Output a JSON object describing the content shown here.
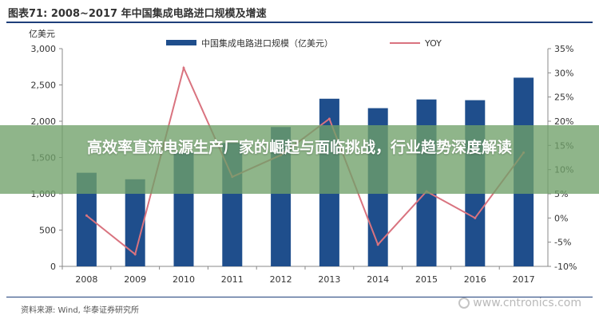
{
  "figure": {
    "title": "图表71:   2008~2017 年中国集成电路进口规模及增速",
    "source": "资料来源: Wind, 华泰证券研究所"
  },
  "overlay": {
    "headline": "高效率直流电源生产厂家的崛起与面临挑战，行业趋势深度解读"
  },
  "watermark": {
    "text": "www.cntronics.com"
  },
  "colors": {
    "bar": "#1f4e8c",
    "line": "#d9737f",
    "title_rule": "#1f3f7a",
    "overlay": "#70a069"
  },
  "chart_data": {
    "type": "bar",
    "categories": [
      "2008",
      "2009",
      "2010",
      "2011",
      "2012",
      "2013",
      "2014",
      "2015",
      "2016",
      "2017"
    ],
    "series": [
      {
        "name": "中国集成电路进口规模（亿美元）",
        "type": "bar",
        "axis": "left",
        "values": [
          1290,
          1200,
          1570,
          1700,
          1920,
          2310,
          2180,
          2300,
          2290,
          2600
        ]
      },
      {
        "name": "YOY",
        "type": "line",
        "axis": "right",
        "values": [
          0.5,
          -7.5,
          31.0,
          8.5,
          13.0,
          20.5,
          -5.5,
          5.5,
          0.0,
          13.5
        ]
      }
    ],
    "left_axis": {
      "label": "亿美元",
      "ylim": [
        0,
        3000
      ],
      "ticks": [
        "0",
        "500",
        "1,000",
        "1,500",
        "2,000",
        "2,500",
        "3,000"
      ]
    },
    "right_axis": {
      "label": "",
      "ylim": [
        -10,
        35
      ],
      "ticks": [
        "-10%",
        "-5%",
        "0%",
        "5%",
        "10%",
        "15%",
        "20%",
        "25%",
        "30%",
        "35%"
      ]
    },
    "legend_position": "top",
    "grid": false
  }
}
